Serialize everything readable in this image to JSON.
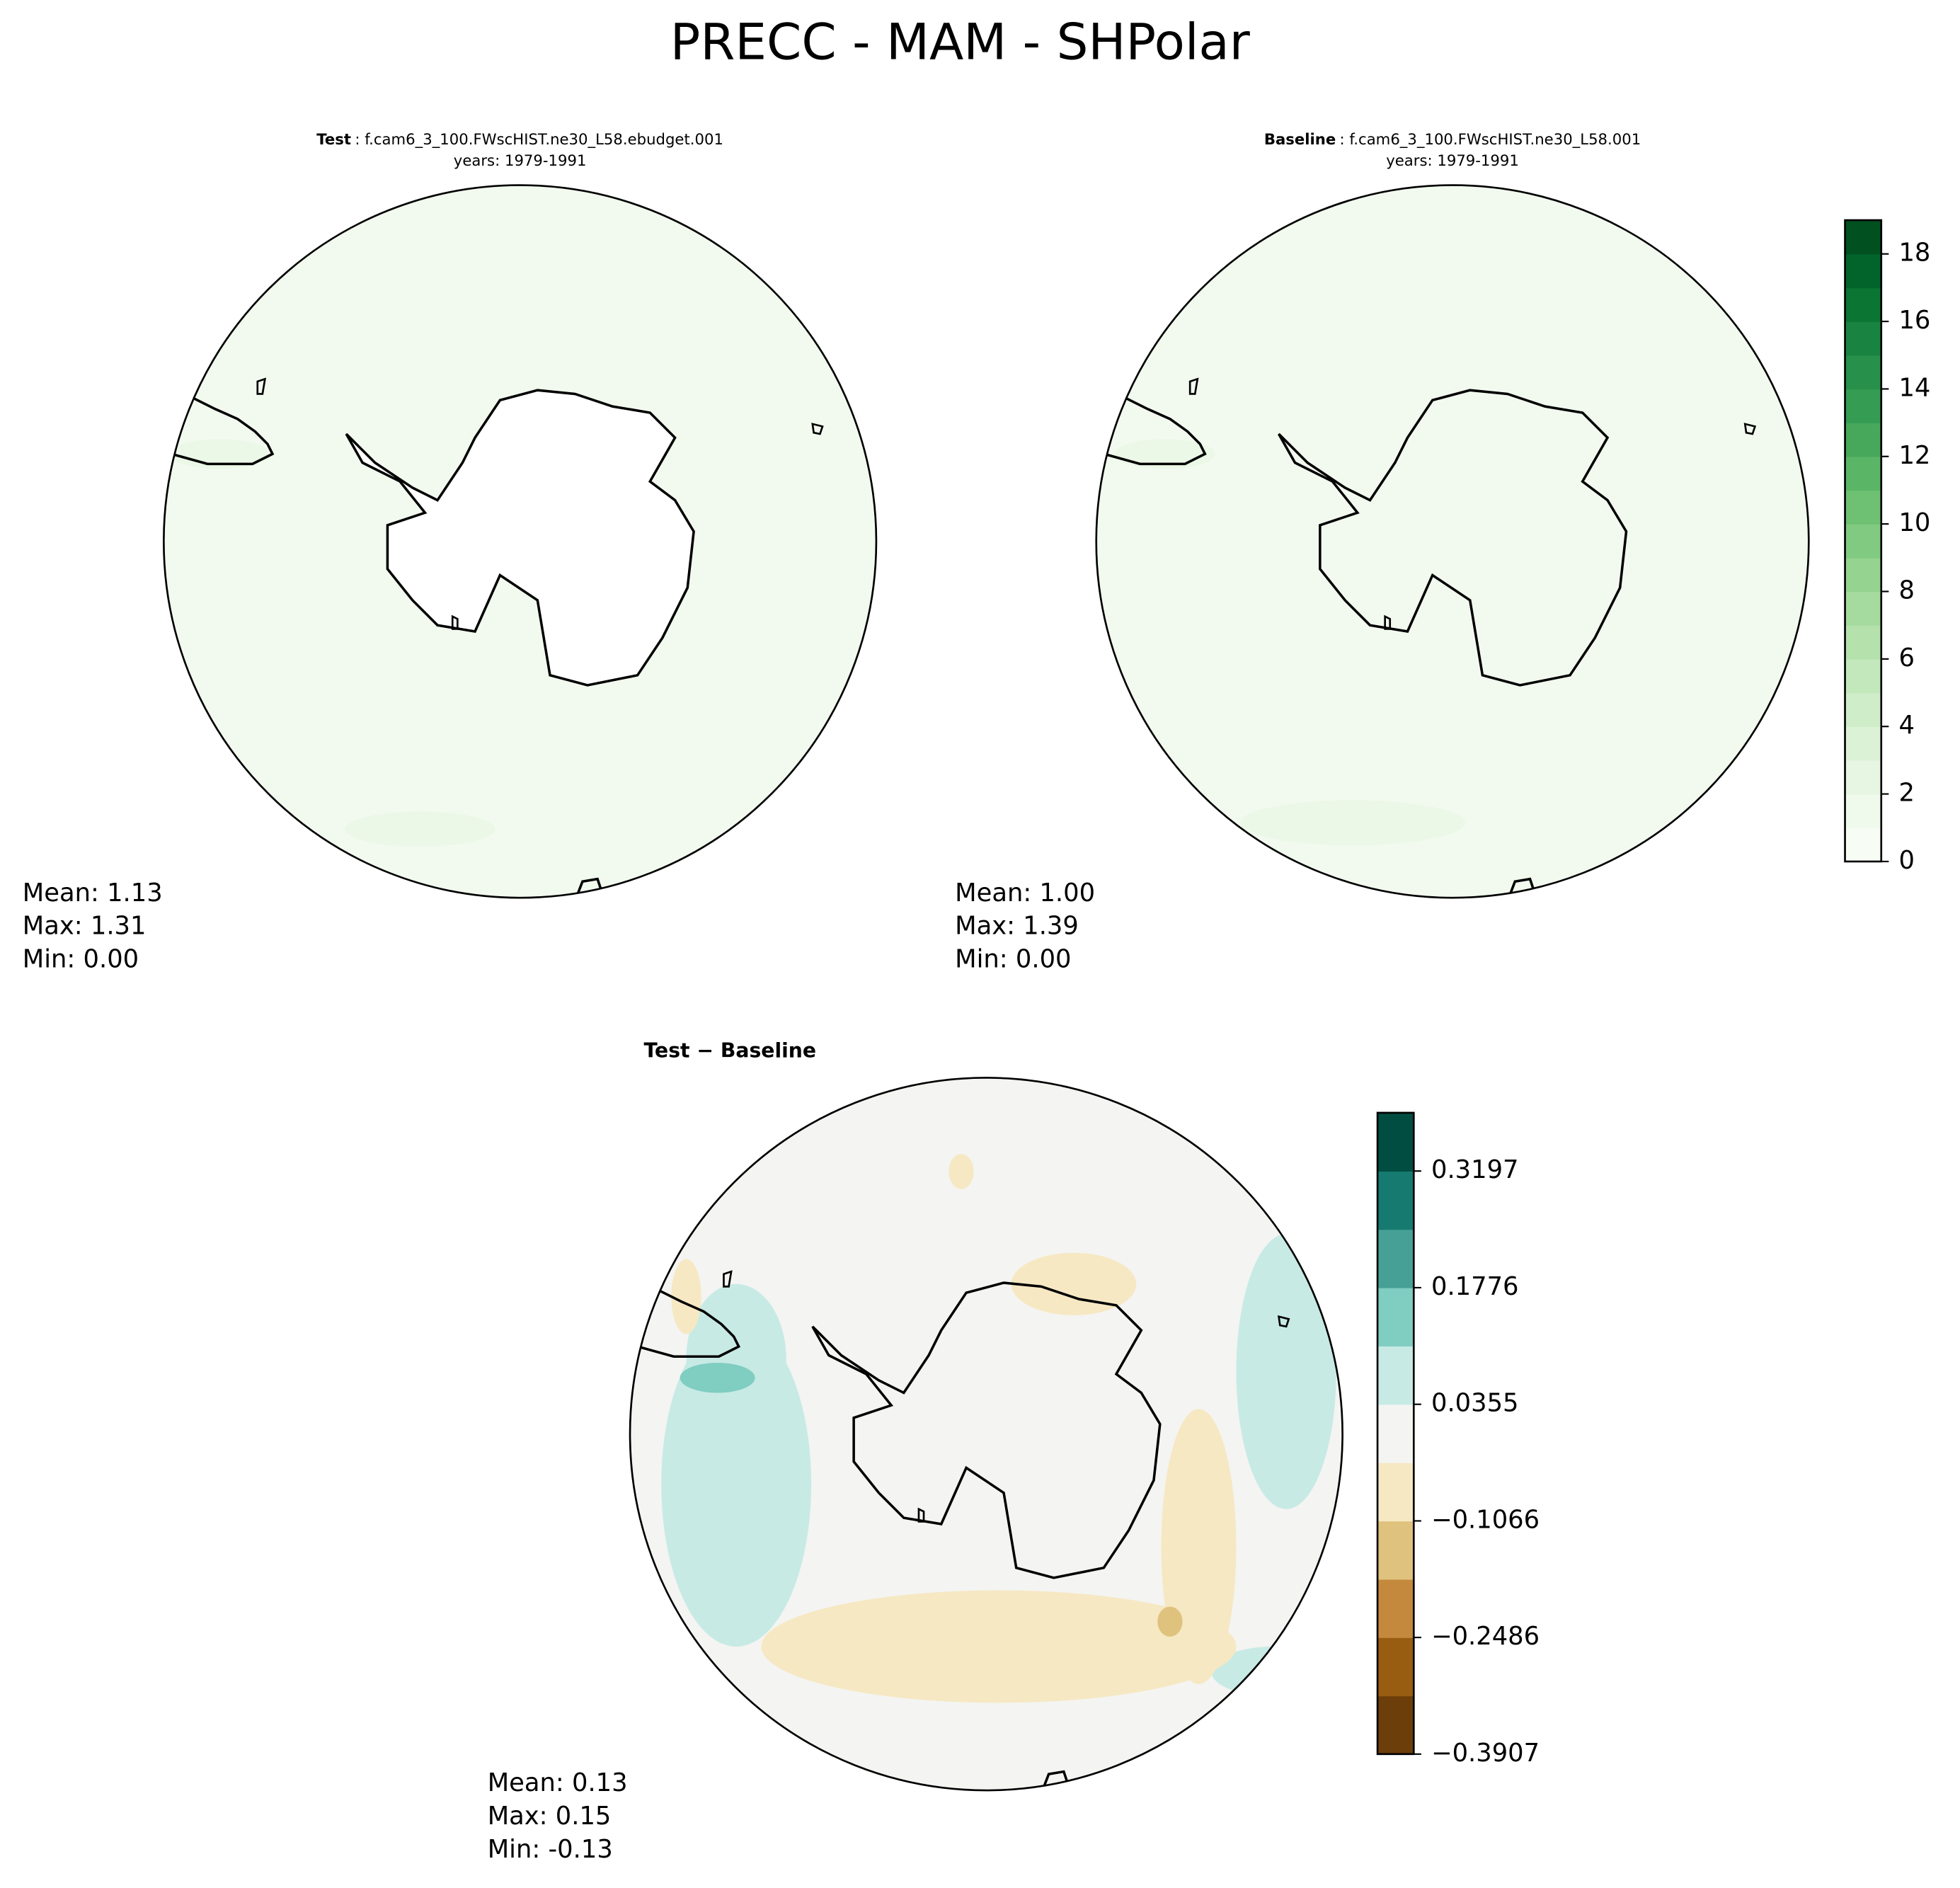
{
  "title": "PRECC - MAM - SHPolar",
  "chart_data": [
    {
      "type": "map",
      "title_bold": "Test",
      "title": ": f.cam6_3_100.FWscHIST.ne30_L58.ebudget.001",
      "subtitle": "years: 1979-1991",
      "stats": [
        "Mean:  1.13",
        "Max:  1.31",
        "Min:  0.00"
      ],
      "color": "#f2faef"
    },
    {
      "type": "map",
      "title_bold": "Baseline",
      "title": ": f.cam6_3_100.FWscHIST.ne30_L58.001",
      "subtitle": "years: 1979-1991",
      "stats": [
        "Mean:  1.00",
        "Max:  1.39",
        "Min:  0.00"
      ],
      "color": "#f2faef"
    },
    {
      "type": "colorbar",
      "ylim": [
        0,
        19
      ],
      "yticks": [
        0,
        2,
        4,
        6,
        8,
        10,
        12,
        14,
        16,
        18
      ],
      "colors": [
        "#f7fcf5",
        "#eff9ec",
        "#e7f6e2",
        "#dcf2d7",
        "#d0edca",
        "#c3e8bc",
        "#b5e1ad",
        "#a5db9e",
        "#94d390",
        "#81ca81",
        "#6ec073",
        "#5bb567",
        "#47a85c",
        "#359d53",
        "#27904a",
        "#198441",
        "#0b7534",
        "#02632b",
        "#005020"
      ]
    },
    {
      "type": "map",
      "title_bold": "Test − Baseline",
      "stats": [
        "Mean:  0.13",
        "Max:  0.15",
        "Min: -0.13"
      ],
      "color": "#f4f4f2"
    },
    {
      "type": "colorbar",
      "ylim": [
        -0.3907,
        0.3907
      ],
      "yticks": [
        {
          "value": -0.3907,
          "label": "−0.3907"
        },
        {
          "value": -0.2486,
          "label": "−0.2486"
        },
        {
          "value": -0.1066,
          "label": "−0.1066"
        },
        0.0355,
        0.1776,
        0.3197
      ],
      "colors": [
        "#6b3e0a",
        "#995d12",
        "#c4893d",
        "#dfc27d",
        "#f6e8c3",
        "#f4f4f2",
        "#c7eae5",
        "#80cdc1",
        "#47a096",
        "#167a70",
        "#014d41"
      ]
    }
  ]
}
